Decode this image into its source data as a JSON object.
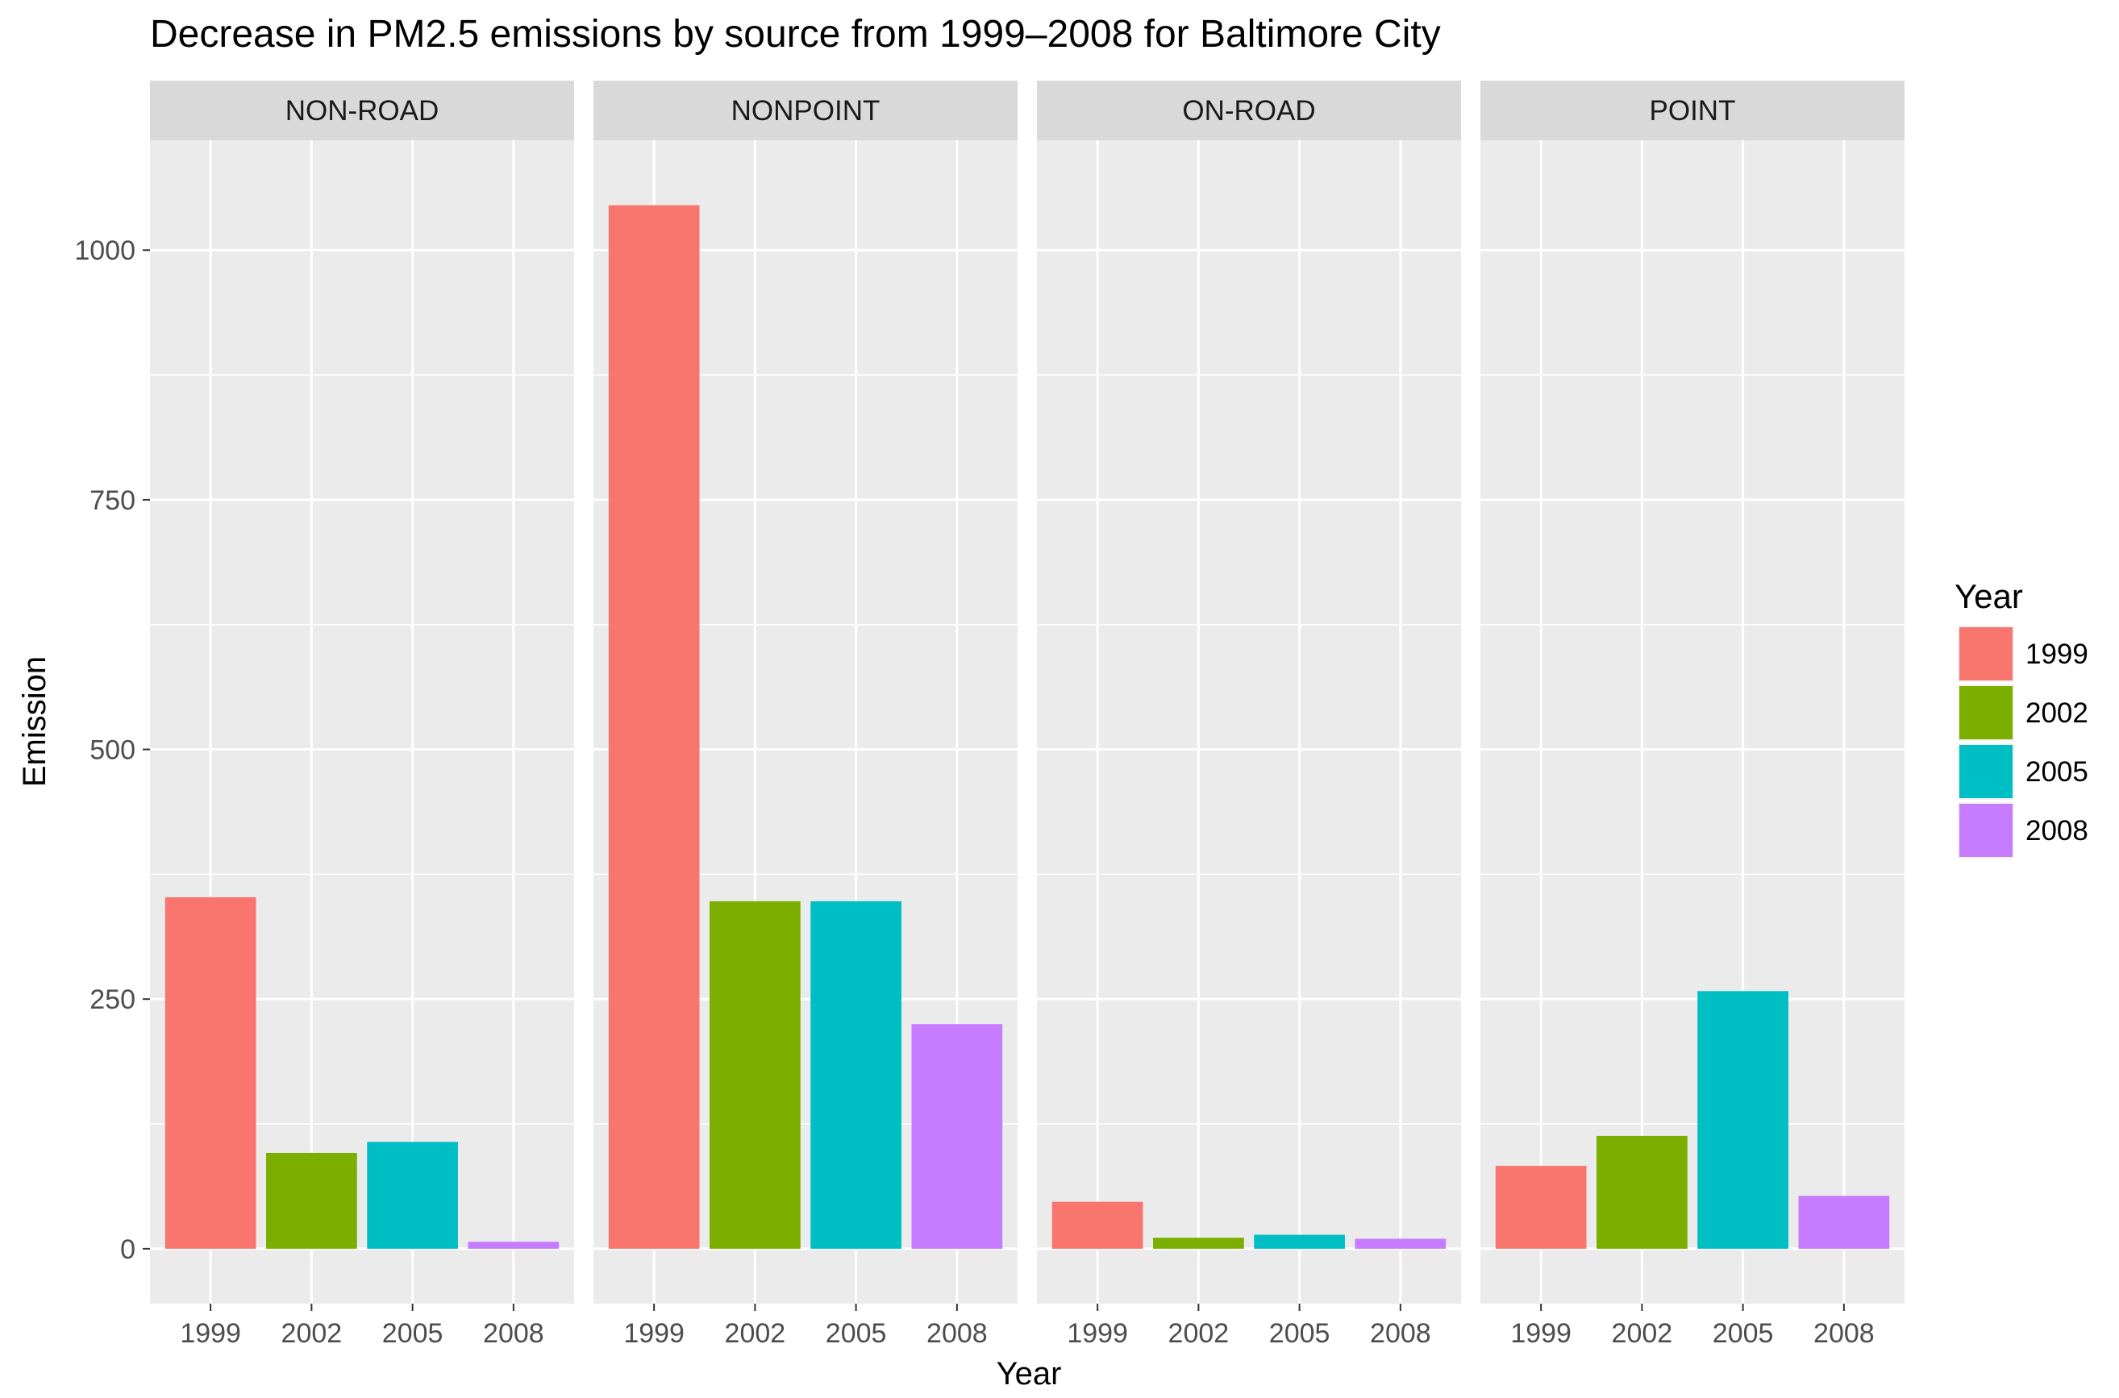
{
  "chart_data": {
    "type": "bar",
    "title": "Decrease in PM2.5 emissions by source from 1999–2008 for Baltimore City",
    "xlabel": "Year",
    "ylabel": "Emission",
    "ylim": [
      -55,
      1110
    ],
    "yticks": [
      "0",
      "250",
      "500",
      "750",
      "1000"
    ],
    "categories": [
      "1999",
      "2002",
      "2005",
      "2008"
    ],
    "facets": [
      {
        "name": "NON-ROAD",
        "values": [
          352,
          96,
          107,
          7
        ]
      },
      {
        "name": "NONPOINT",
        "values": [
          1045,
          348,
          348,
          225
        ]
      },
      {
        "name": "ON-ROAD",
        "values": [
          47,
          11,
          14,
          10
        ]
      },
      {
        "name": "POINT",
        "values": [
          83,
          113,
          258,
          53
        ]
      }
    ],
    "legend": {
      "title": "Year",
      "position": "right",
      "items": [
        {
          "label": "1999",
          "color": "#F8766D"
        },
        {
          "label": "2002",
          "color": "#7CAE00"
        },
        {
          "label": "2005",
          "color": "#00BFC4"
        },
        {
          "label": "2008",
          "color": "#C77CFF"
        }
      ]
    },
    "grid": true,
    "colors": {
      "panel_bg": "#EBEBEB",
      "strip_bg": "#D9D9D9",
      "grid_major": "#FFFFFF"
    }
  }
}
